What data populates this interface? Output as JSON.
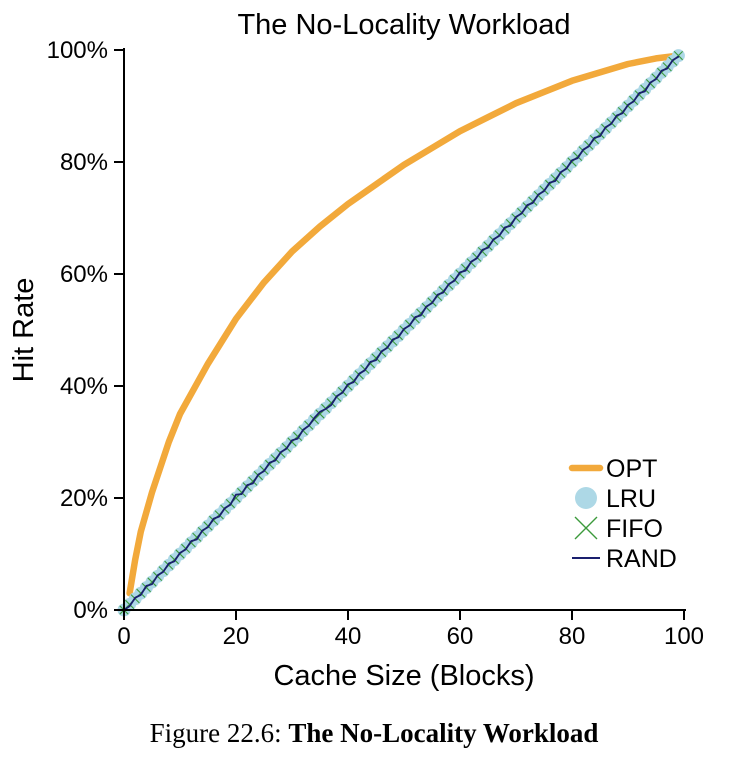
{
  "chart_data": {
    "type": "line",
    "title": "The No-Locality Workload",
    "xlabel": "Cache Size (Blocks)",
    "ylabel": "Hit Rate",
    "xlim": [
      0,
      100
    ],
    "ylim": [
      0,
      100
    ],
    "x_ticks": [
      "0",
      "20",
      "40",
      "60",
      "80",
      "100"
    ],
    "y_ticks": [
      "0%",
      "20%",
      "40%",
      "60%",
      "80%",
      "100%"
    ],
    "grid": false,
    "legend_position": "bottom-right",
    "series": [
      {
        "name": "OPT",
        "color": "#f2a93b",
        "style": "thick-line",
        "x": [
          1,
          2,
          3,
          5,
          8,
          10,
          15,
          20,
          25,
          30,
          35,
          40,
          45,
          50,
          55,
          60,
          65,
          70,
          75,
          80,
          85,
          90,
          95,
          99
        ],
        "y": [
          3,
          9,
          14,
          21,
          30,
          35,
          44,
          52,
          58.5,
          64,
          68.5,
          72.5,
          76,
          79.5,
          82.5,
          85.5,
          88,
          90.5,
          92.5,
          94.5,
          96,
          97.5,
          98.5,
          99
        ]
      },
      {
        "name": "LRU",
        "color": "#add8e6",
        "style": "circle-markers",
        "x": [
          0,
          1,
          2,
          3,
          4,
          5,
          6,
          7,
          8,
          9,
          10,
          11,
          12,
          13,
          14,
          15,
          16,
          17,
          18,
          19,
          20,
          21,
          22,
          23,
          24,
          25,
          26,
          27,
          28,
          29,
          30,
          31,
          32,
          33,
          34,
          35,
          36,
          37,
          38,
          39,
          40,
          41,
          42,
          43,
          44,
          45,
          46,
          47,
          48,
          49,
          50,
          51,
          52,
          53,
          54,
          55,
          56,
          57,
          58,
          59,
          60,
          61,
          62,
          63,
          64,
          65,
          66,
          67,
          68,
          69,
          70,
          71,
          72,
          73,
          74,
          75,
          76,
          77,
          78,
          79,
          80,
          81,
          82,
          83,
          84,
          85,
          86,
          87,
          88,
          89,
          90,
          91,
          92,
          93,
          94,
          95,
          96,
          97,
          98,
          99
        ],
        "y": [
          0,
          1,
          2,
          3,
          4,
          5,
          6,
          7,
          8,
          9,
          10,
          11,
          12,
          13,
          14,
          15,
          16,
          17,
          18,
          19,
          20,
          21,
          22,
          23,
          24,
          25,
          26,
          27,
          28,
          29,
          30,
          31,
          32,
          33,
          34,
          35,
          36,
          37,
          38,
          39,
          40,
          41,
          42,
          43,
          44,
          45,
          46,
          47,
          48,
          49,
          50,
          51,
          52,
          53,
          54,
          55,
          56,
          57,
          58,
          59,
          60,
          61,
          62,
          63,
          64,
          65,
          66,
          67,
          68,
          69,
          70,
          71,
          72,
          73,
          74,
          75,
          76,
          77,
          78,
          79,
          80,
          81,
          82,
          83,
          84,
          85,
          86,
          87,
          88,
          89,
          90,
          91,
          92,
          93,
          94,
          95,
          96,
          97,
          98,
          99
        ]
      },
      {
        "name": "FIFO",
        "color": "#3c9a3c",
        "style": "x-markers",
        "x": [
          0,
          1,
          2,
          3,
          4,
          5,
          6,
          7,
          8,
          9,
          10,
          11,
          12,
          13,
          14,
          15,
          16,
          17,
          18,
          19,
          20,
          21,
          22,
          23,
          24,
          25,
          26,
          27,
          28,
          29,
          30,
          31,
          32,
          33,
          34,
          35,
          36,
          37,
          38,
          39,
          40,
          41,
          42,
          43,
          44,
          45,
          46,
          47,
          48,
          49,
          50,
          51,
          52,
          53,
          54,
          55,
          56,
          57,
          58,
          59,
          60,
          61,
          62,
          63,
          64,
          65,
          66,
          67,
          68,
          69,
          70,
          71,
          72,
          73,
          74,
          75,
          76,
          77,
          78,
          79,
          80,
          81,
          82,
          83,
          84,
          85,
          86,
          87,
          88,
          89,
          90,
          91,
          92,
          93,
          94,
          95,
          96,
          97,
          98,
          99
        ],
        "y": [
          0,
          1,
          2,
          3,
          4,
          5,
          6,
          7,
          8,
          9,
          10,
          11,
          12,
          13,
          14,
          15,
          16,
          17,
          18,
          19,
          20,
          21,
          22,
          23,
          24,
          25,
          26,
          27,
          28,
          29,
          30,
          31,
          32,
          33,
          34,
          35,
          36,
          37,
          38,
          39,
          40,
          41,
          42,
          43,
          44,
          45,
          46,
          47,
          48,
          49,
          50,
          51,
          52,
          53,
          54,
          55,
          56,
          57,
          58,
          59,
          60,
          61,
          62,
          63,
          64,
          65,
          66,
          67,
          68,
          69,
          70,
          71,
          72,
          73,
          74,
          75,
          76,
          77,
          78,
          79,
          80,
          81,
          82,
          83,
          84,
          85,
          86,
          87,
          88,
          89,
          90,
          91,
          92,
          93,
          94,
          95,
          96,
          97,
          98,
          99
        ]
      },
      {
        "name": "RAND",
        "color": "#1a1f6e",
        "style": "thin-line",
        "x": [
          0,
          1,
          2,
          3,
          4,
          5,
          6,
          7,
          8,
          9,
          10,
          11,
          12,
          13,
          14,
          15,
          16,
          17,
          18,
          19,
          20,
          21,
          22,
          23,
          24,
          25,
          26,
          27,
          28,
          29,
          30,
          31,
          32,
          33,
          34,
          35,
          36,
          37,
          38,
          39,
          40,
          41,
          42,
          43,
          44,
          45,
          46,
          47,
          48,
          49,
          50,
          51,
          52,
          53,
          54,
          55,
          56,
          57,
          58,
          59,
          60,
          61,
          62,
          63,
          64,
          65,
          66,
          67,
          68,
          69,
          70,
          71,
          72,
          73,
          74,
          75,
          76,
          77,
          78,
          79,
          80,
          81,
          82,
          83,
          84,
          85,
          86,
          87,
          88,
          89,
          90,
          91,
          92,
          93,
          94,
          95,
          96,
          97,
          98,
          99
        ],
        "y": [
          0,
          0.7,
          2.2,
          2.7,
          4.3,
          4.6,
          6.2,
          6.8,
          8.3,
          8.7,
          10.2,
          10.8,
          12.3,
          12.6,
          14.2,
          14.8,
          16.3,
          16.7,
          18.2,
          18.8,
          20.6,
          20.7,
          22.3,
          22.6,
          24.2,
          24.8,
          26.3,
          26.7,
          28.2,
          28.8,
          30.3,
          30.6,
          32.2,
          32.9,
          34.3,
          35.4,
          35.9,
          36.6,
          38.2,
          38.8,
          40.3,
          40.7,
          42.2,
          42.8,
          44.3,
          44.6,
          46.2,
          46.8,
          48.3,
          48.7,
          50.2,
          50.8,
          52.3,
          52.6,
          54.2,
          54.8,
          56.3,
          56.7,
          58.2,
          58.8,
          60.3,
          60.6,
          62.2,
          62.8,
          64.3,
          64.7,
          66.2,
          66.8,
          68.3,
          68.6,
          70.2,
          70.8,
          72.3,
          72.7,
          74.2,
          74.8,
          76.3,
          76.6,
          78.2,
          78.8,
          80.3,
          80.7,
          82.2,
          82.8,
          84.3,
          84.6,
          86.2,
          86.8,
          88.3,
          88.7,
          90.2,
          90.8,
          92.3,
          92.6,
          94.2,
          94.8,
          96.3,
          96.7,
          98.2,
          98.8
        ]
      }
    ]
  },
  "caption": {
    "label": "Figure 22.6:",
    "title": "The No-Locality Workload"
  }
}
